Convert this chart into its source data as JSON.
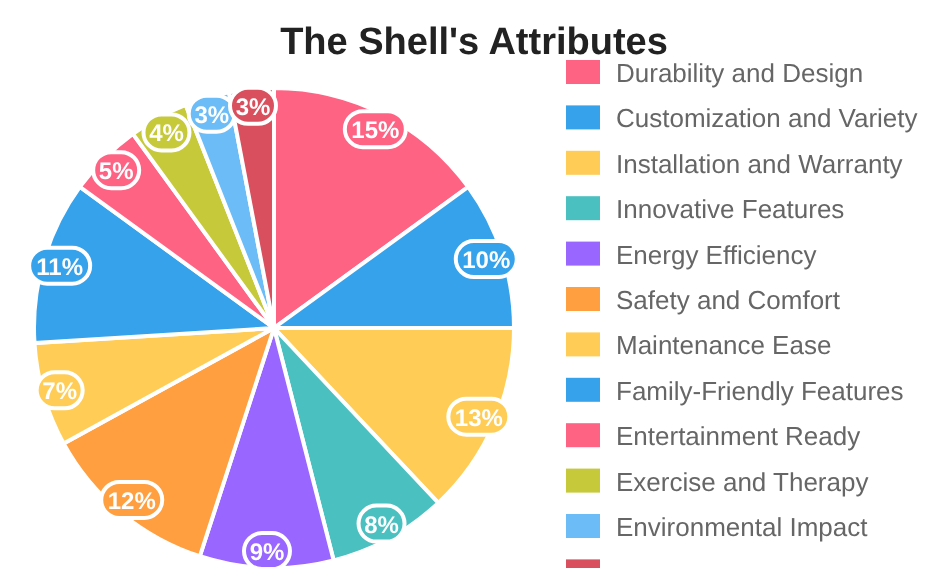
{
  "chart_data": {
    "type": "pie",
    "title": "The Shell's Attributes",
    "categories": [
      "Durability and Design",
      "Customization and Variety",
      "Installation and Warranty",
      "Innovative Features",
      "Energy Efficiency",
      "Safety and Comfort",
      "Maintenance Ease",
      "Family-Friendly Features",
      "Entertainment Ready",
      "Exercise and Therapy",
      "Environmental Impact",
      null
    ],
    "values": [
      15,
      10,
      13,
      8,
      9,
      12,
      7,
      11,
      5,
      4,
      3,
      3
    ],
    "value_labels": [
      "15%",
      "10%",
      "13%",
      "8%",
      "9%",
      "12%",
      "7%",
      "11%",
      "5%",
      "4%",
      "3%",
      "3%"
    ],
    "colors": [
      "#ff6384",
      "#36a2eb",
      "#ffcd56",
      "#4bc0c0",
      "#9966ff",
      "#ff9f40",
      "#ffcd56",
      "#36a2eb",
      "#ff6384",
      "#c5c93a",
      "#6cbcf7",
      "#d94f5e"
    ],
    "legend": "right"
  }
}
